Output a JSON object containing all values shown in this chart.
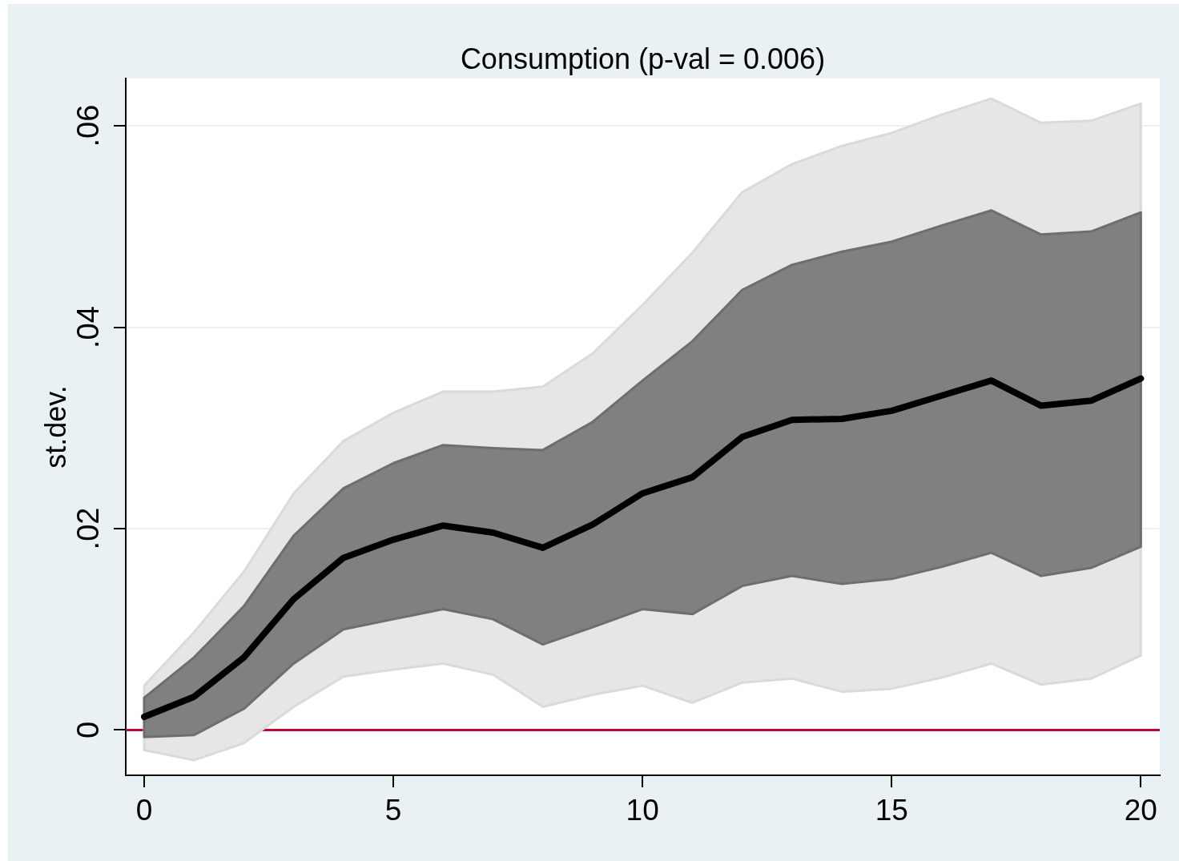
{
  "chart_data": {
    "type": "line",
    "title": "Consumption (p-val = 0.006)",
    "ylabel": "st.dev.",
    "x": [
      0,
      1,
      2,
      3,
      4,
      5,
      6,
      7,
      8,
      9,
      10,
      11,
      12,
      13,
      14,
      15,
      16,
      17,
      18,
      19,
      20
    ],
    "series": [
      {
        "type": "line",
        "color": "#e6e6e6",
        "values": [
          null,
          null,
          null,
          null,
          null,
          null,
          null,
          null,
          null,
          null,
          null,
          null,
          null,
          null,
          null,
          null,
          null,
          null,
          null,
          null,
          null
        ],
        "lower": [
          -0.002,
          -0.003,
          -0.0013,
          0.0023,
          0.0053,
          0.006,
          0.0066,
          0.0055,
          0.0023,
          0.0035,
          0.0044,
          0.0027,
          0.0047,
          0.0051,
          0.0038,
          0.0041,
          0.0052,
          0.0066,
          0.0045,
          0.0051,
          0.0074
        ],
        "upper": [
          0.0044,
          0.0097,
          0.0157,
          0.0235,
          0.0287,
          0.0315,
          0.0336,
          0.0336,
          0.0341,
          0.0374,
          0.0422,
          0.0474,
          0.0534,
          0.0562,
          0.058,
          0.0593,
          0.0611,
          0.0627,
          0.0603,
          0.0605,
          0.0622
        ]
      },
      {
        "type": "line",
        "color": "#808080",
        "values": [
          null,
          null,
          null,
          null,
          null,
          null,
          null,
          null,
          null,
          null,
          null,
          null,
          null,
          null,
          null,
          null,
          null,
          null,
          null,
          null,
          null
        ],
        "lower": [
          -0.0007,
          -0.0005,
          0.0021,
          0.0066,
          0.01,
          0.011,
          0.012,
          0.011,
          0.0085,
          0.0102,
          0.012,
          0.0115,
          0.0143,
          0.0153,
          0.0145,
          0.015,
          0.0162,
          0.0176,
          0.0153,
          0.0161,
          0.0182
        ],
        "upper": [
          0.0032,
          0.0072,
          0.0123,
          0.0193,
          0.024,
          0.0265,
          0.0283,
          0.028,
          0.0278,
          0.0306,
          0.0347,
          0.0386,
          0.0437,
          0.0462,
          0.0475,
          0.0485,
          0.0501,
          0.0516,
          0.0492,
          0.0495,
          0.0514
        ]
      },
      {
        "type": "line",
        "color": "#000000",
        "values": [
          0.0013,
          0.0033,
          0.0072,
          0.013,
          0.0171,
          0.0189,
          0.0203,
          0.0196,
          0.0181,
          0.0204,
          0.0235,
          0.0251,
          0.0291,
          0.0308,
          0.0309,
          0.0317,
          0.0332,
          0.0347,
          0.0322,
          0.0327,
          0.0349
        ]
      }
    ],
    "xlim": [
      -0.37,
      20.38
    ],
    "xticks": [
      0,
      5,
      10,
      15,
      20
    ],
    "ylim": [
      -0.0045,
      0.0647
    ],
    "yticks": [
      0,
      {
        "value": 0.02,
        "label": ".02"
      },
      {
        "value": 0.04,
        "label": ".04"
      },
      {
        "value": 0.06,
        "label": ".06"
      }
    ],
    "ref_lines": [
      {
        "axis": "y",
        "value": 0,
        "color": "#c10534"
      }
    ],
    "grid": "y",
    "legend": false,
    "marker": "none"
  }
}
